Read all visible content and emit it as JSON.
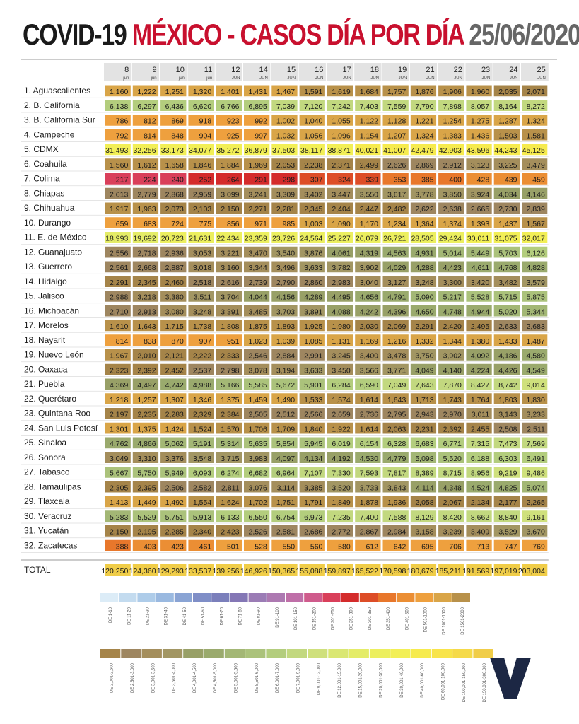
{
  "title": {
    "part1": "COVID-19 ",
    "part2": "MÉXICO - CASOS DÍA POR DÍA ",
    "part3": "25/06/2020"
  },
  "colors": {
    "title_dark": "#1a1a1a",
    "title_red": "#c8102e",
    "title_gray": "#666666"
  },
  "chart_data": {
    "type": "table",
    "columns": [
      {
        "day": "8",
        "month": "jun"
      },
      {
        "day": "9",
        "month": "jun"
      },
      {
        "day": "10",
        "month": "jun"
      },
      {
        "day": "11",
        "month": "jun"
      },
      {
        "day": "12",
        "month": "JUN"
      },
      {
        "day": "14",
        "month": "JUN"
      },
      {
        "day": "15",
        "month": "JUN"
      },
      {
        "day": "16",
        "month": "JUN"
      },
      {
        "day": "17",
        "month": "JUN"
      },
      {
        "day": "18",
        "month": "JUN"
      },
      {
        "day": "19",
        "month": "JUN"
      },
      {
        "day": "21",
        "month": "JUN"
      },
      {
        "day": "22",
        "month": "JUN"
      },
      {
        "day": "23",
        "month": "JUN"
      },
      {
        "day": "24",
        "month": "JUN"
      },
      {
        "day": "25",
        "month": "JUN"
      }
    ],
    "rows": [
      {
        "label": "1. Aguascalientes",
        "values": [
          "1,160",
          "1,222",
          "1,251",
          "1,320",
          "1,401",
          "1,431",
          "1,467",
          "1,591",
          "1,619",
          "1,684",
          "1,757",
          "1,876",
          "1,906",
          "1,960",
          "2,035",
          "2,071"
        ]
      },
      {
        "label": "2. B. California",
        "values": [
          "6,138",
          "6,297",
          "6,436",
          "6,620",
          "6,766",
          "6,895",
          "7,039",
          "7,120",
          "7,242",
          "7,403",
          "7,559",
          "7,790",
          "7,898",
          "8,057",
          "8,164",
          "8,272"
        ]
      },
      {
        "label": "3. B. California Sur",
        "values": [
          "786",
          "812",
          "869",
          "918",
          "923",
          "992",
          "1,002",
          "1,040",
          "1,055",
          "1,122",
          "1,128",
          "1,221",
          "1,254",
          "1,275",
          "1,287",
          "1,324"
        ]
      },
      {
        "label": "4. Campeche",
        "values": [
          "792",
          "814",
          "848",
          "904",
          "925",
          "997",
          "1,032",
          "1,056",
          "1,096",
          "1,154",
          "1,207",
          "1,324",
          "1,383",
          "1,436",
          "1,503",
          "1,581"
        ]
      },
      {
        "label": "5. CDMX",
        "values": [
          "31,493",
          "32,256",
          "33,173",
          "34,077",
          "35,272",
          "36,879",
          "37,503",
          "38,117",
          "38,871",
          "40,021",
          "41,007",
          "42,479",
          "42,903",
          "43,596",
          "44,243",
          "45,125"
        ]
      },
      {
        "label": "6. Coahuila",
        "values": [
          "1,560",
          "1,612",
          "1,658",
          "1,846",
          "1,884",
          "1,969",
          "2,053",
          "2,238",
          "2,371",
          "2,499",
          "2,626",
          "2,869",
          "2,912",
          "3,123",
          "3,225",
          "3,479"
        ]
      },
      {
        "label": "7. Colima",
        "values": [
          "217",
          "224",
          "240",
          "252",
          "264",
          "291",
          "298",
          "307",
          "324",
          "339",
          "353",
          "385",
          "400",
          "428",
          "439",
          "459"
        ]
      },
      {
        "label": "8. Chiapas",
        "values": [
          "2,613",
          "2,779",
          "2,868",
          "2,959",
          "3,099",
          "3,241",
          "3,309",
          "3,402",
          "3,447",
          "3,550",
          "3,617",
          "3,778",
          "3,850",
          "3,924",
          "4,034",
          "4,146"
        ]
      },
      {
        "label": "9. Chihuahua",
        "values": [
          "1,917",
          "1,963",
          "2,073",
          "2,103",
          "2,150",
          "2,271",
          "2,281",
          "2,345",
          "2,404",
          "2,447",
          "2,482",
          "2,622",
          "2,638",
          "2,665",
          "2,730",
          "2,839"
        ]
      },
      {
        "label": "10. Durango",
        "values": [
          "659",
          "683",
          "724",
          "775",
          "856",
          "971",
          "985",
          "1,003",
          "1,090",
          "1,170",
          "1,234",
          "1,364",
          "1,374",
          "1,393",
          "1,437",
          "1,567"
        ]
      },
      {
        "label": "11. E. de México",
        "values": [
          "18,993",
          "19,692",
          "20,723",
          "21,631",
          "22,434",
          "23,359",
          "23,726",
          "24,564",
          "25,227",
          "26,079",
          "26,721",
          "28,505",
          "29,424",
          "30,011",
          "31,075",
          "32,017"
        ]
      },
      {
        "label": "12. Guanajuato",
        "values": [
          "2,556",
          "2,718",
          "2,936",
          "3,053",
          "3,221",
          "3,470",
          "3,540",
          "3,876",
          "4,061",
          "4,319",
          "4,563",
          "4,931",
          "5,014",
          "5,449",
          "5,703",
          "6,126"
        ]
      },
      {
        "label": "13. Guerrero",
        "values": [
          "2,561",
          "2,668",
          "2,887",
          "3,018",
          "3,160",
          "3,344",
          "3,496",
          "3,633",
          "3,782",
          "3,902",
          "4,029",
          "4,288",
          "4,423",
          "4,611",
          "4,768",
          "4,828"
        ]
      },
      {
        "label": "14. Hidalgo",
        "values": [
          "2,291",
          "2,345",
          "2,460",
          "2,518",
          "2,616",
          "2,739",
          "2,790",
          "2,860",
          "2,983",
          "3,040",
          "3,127",
          "3,248",
          "3,300",
          "3,420",
          "3,482",
          "3,579"
        ]
      },
      {
        "label": "15. Jalisco",
        "values": [
          "2,988",
          "3,218",
          "3,380",
          "3,511",
          "3,704",
          "4,044",
          "4,156",
          "4,289",
          "4,495",
          "4,656",
          "4,791",
          "5,090",
          "5,217",
          "5,528",
          "5,715",
          "5,875"
        ]
      },
      {
        "label": "16. Michoacán",
        "values": [
          "2,710",
          "2,913",
          "3,080",
          "3,248",
          "3,391",
          "3,485",
          "3,703",
          "3,891",
          "4,088",
          "4,242",
          "4,396",
          "4,650",
          "4,748",
          "4,944",
          "5,020",
          "5,344"
        ]
      },
      {
        "label": "17. Morelos",
        "values": [
          "1,610",
          "1,643",
          "1,715",
          "1,738",
          "1,808",
          "1,875",
          "1,893",
          "1,925",
          "1,980",
          "2,030",
          "2,069",
          "2,291",
          "2,420",
          "2,495",
          "2,633",
          "2,683"
        ]
      },
      {
        "label": "18. Nayarit",
        "values": [
          "814",
          "838",
          "870",
          "907",
          "951",
          "1,023",
          "1,039",
          "1,085",
          "1,131",
          "1,169",
          "1,216",
          "1,332",
          "1,344",
          "1,380",
          "1,433",
          "1,487"
        ]
      },
      {
        "label": "19. Nuevo León",
        "values": [
          "1,967",
          "2,010",
          "2,121",
          "2,222",
          "2,333",
          "2,546",
          "2,884",
          "2,991",
          "3,245",
          "3,400",
          "3,478",
          "3,750",
          "3,902",
          "4,092",
          "4,186",
          "4,580"
        ]
      },
      {
        "label": "20. Oaxaca",
        "values": [
          "2,323",
          "2,392",
          "2,452",
          "2,537",
          "2,798",
          "3,078",
          "3,194",
          "3,633",
          "3,450",
          "3,566",
          "3,771",
          "4,049",
          "4,140",
          "4,224",
          "4,426",
          "4,549"
        ]
      },
      {
        "label": "21. Puebla",
        "values": [
          "4,369",
          "4,497",
          "4,742",
          "4,988",
          "5,166",
          "5,585",
          "5,672",
          "5,901",
          "6,284",
          "6,590",
          "7,049",
          "7,643",
          "7,870",
          "8,427",
          "8,742",
          "9,014"
        ]
      },
      {
        "label": "22. Querétaro",
        "values": [
          "1,218",
          "1,257",
          "1,307",
          "1,346",
          "1,375",
          "1,459",
          "1,490",
          "1,533",
          "1,574",
          "1,614",
          "1,643",
          "1,713",
          "1,743",
          "1,764",
          "1,803",
          "1,830"
        ]
      },
      {
        "label": "23. Quintana Roo",
        "values": [
          "2,197",
          "2,235",
          "2,283",
          "2,329",
          "2,384",
          "2,505",
          "2,512",
          "2,566",
          "2,659",
          "2,736",
          "2,795",
          "2,943",
          "2,970",
          "3,011",
          "3,143",
          "3,233"
        ]
      },
      {
        "label": "24. San Luis Potosí",
        "values": [
          "1,301",
          "1,375",
          "1,424",
          "1,524",
          "1,570",
          "1,706",
          "1,709",
          "1,840",
          "1,922",
          "1,614",
          "2,063",
          "2,231",
          "2,392",
          "2,455",
          "2,508",
          "2,511"
        ]
      },
      {
        "label": "25. Sinaloa",
        "values": [
          "4,762",
          "4,866",
          "5,062",
          "5,191",
          "5,314",
          "5,635",
          "5,854",
          "5,945",
          "6,019",
          "6,154",
          "6,328",
          "6,683",
          "6,771",
          "7,315",
          "7,473",
          "7,569"
        ]
      },
      {
        "label": "26. Sonora",
        "values": [
          "3,049",
          "3,310",
          "3,376",
          "3,548",
          "3,715",
          "3,983",
          "4,097",
          "4,134",
          "4,192",
          "4,530",
          "4,779",
          "5,098",
          "5,520",
          "6,188",
          "6,303",
          "6,491"
        ]
      },
      {
        "label": "27. Tabasco",
        "values": [
          "5,667",
          "5,750",
          "5,949",
          "6,093",
          "6,274",
          "6,682",
          "6,964",
          "7,107",
          "7,330",
          "7,593",
          "7,817",
          "8,389",
          "8,715",
          "8,956",
          "9,219",
          "9,486"
        ]
      },
      {
        "label": "28. Tamaulipas",
        "values": [
          "2,305",
          "2,395",
          "2,506",
          "2,582",
          "2,811",
          "3,076",
          "3,114",
          "3,385",
          "3,520",
          "3,733",
          "3,843",
          "4,114",
          "4,348",
          "4,524",
          "4,825",
          "5,074"
        ]
      },
      {
        "label": "29. Tlaxcala",
        "values": [
          "1,413",
          "1,449",
          "1,492",
          "1,554",
          "1,624",
          "1,702",
          "1,751",
          "1,791",
          "1,849",
          "1,878",
          "1,936",
          "2,058",
          "2,067",
          "2,134",
          "2,177",
          "2,265"
        ]
      },
      {
        "label": "30. Veracruz",
        "values": [
          "5,283",
          "5,529",
          "5,751",
          "5,913",
          "6,133",
          "6,550",
          "6,754",
          "6,973",
          "7,235",
          "7,400",
          "7,588",
          "8,129",
          "8,420",
          "8,662",
          "8,840",
          "9,161"
        ]
      },
      {
        "label": "31. Yucatán",
        "values": [
          "2,150",
          "2,195",
          "2,285",
          "2,340",
          "2,423",
          "2,526",
          "2,581",
          "2,686",
          "2,772",
          "2,867",
          "2,984",
          "3,158",
          "3,239",
          "3,409",
          "3,529",
          "3,670"
        ]
      },
      {
        "label": "32. Zacatecas",
        "values": [
          "388",
          "403",
          "423",
          "461",
          "501",
          "528",
          "550",
          "560",
          "580",
          "612",
          "642",
          "695",
          "706",
          "713",
          "747",
          "769"
        ]
      }
    ],
    "total": {
      "label": "TOTAL",
      "values": [
        "120,250",
        "124,360",
        "129,293",
        "133,537",
        "139,256",
        "146,926",
        "150,365",
        "155,088",
        "159,897",
        "165,522",
        "170,598",
        "180,679",
        "185,211",
        "191,569",
        "197,019",
        "203,004"
      ]
    },
    "legend_row1": [
      {
        "label": "DE 1-10",
        "color": "#dcecf7"
      },
      {
        "label": "DE 11-20",
        "color": "#c3dbef"
      },
      {
        "label": "DE 21-30",
        "color": "#aecce9"
      },
      {
        "label": "DE 31-40",
        "color": "#9ab9e0"
      },
      {
        "label": "DE 41-50",
        "color": "#8aa4d4"
      },
      {
        "label": "DE 51-60",
        "color": "#7f8ec7"
      },
      {
        "label": "DE 61-70",
        "color": "#7b7fbb"
      },
      {
        "label": "DE 71-80",
        "color": "#8477b5"
      },
      {
        "label": "DE 81-90",
        "color": "#9b7cb5"
      },
      {
        "label": "DE 91-100",
        "color": "#ad79b1"
      },
      {
        "label": "DE 101-150",
        "color": "#bf6fa8"
      },
      {
        "label": "DE 151-200",
        "color": "#cf5b8c"
      },
      {
        "label": "DE 201-250",
        "color": "#d93f5a"
      },
      {
        "label": "DE 251-300",
        "color": "#d42b2b"
      },
      {
        "label": "DE 301-350",
        "color": "#dd4d27"
      },
      {
        "label": "DE 351-400",
        "color": "#e8772b"
      },
      {
        "label": "DE 401-500",
        "color": "#eb8e34"
      },
      {
        "label": "DE 501-1000",
        "color": "#eea03e"
      },
      {
        "label": "DE 1001-1500",
        "color": "#d9a548"
      },
      {
        "label": "DE 1501-2000",
        "color": "#b8914a"
      }
    ],
    "legend_row2": [
      {
        "label": "DE 2,001-2,500",
        "color": "#a58449"
      },
      {
        "label": "DE 2,501-3,000",
        "color": "#9e8660"
      },
      {
        "label": "DE 3,001-3,500",
        "color": "#a48e5c"
      },
      {
        "label": "DE 3,501-4,000",
        "color": "#a29663"
      },
      {
        "label": "DE 4,001-4,500",
        "color": "#98a067"
      },
      {
        "label": "DE 4,501-5,000",
        "color": "#9aaa6d"
      },
      {
        "label": "DE 5,001-5,500",
        "color": "#a3b775"
      },
      {
        "label": "DE 5,501-6,000",
        "color": "#abc27b"
      },
      {
        "label": "DE 6,001-7,000",
        "color": "#b3cd7d"
      },
      {
        "label": "DE 7,001-9,000",
        "color": "#c2d87f"
      },
      {
        "label": "DE 9,001-12,000",
        "color": "#cfe07c"
      },
      {
        "label": "DE 12,001-15,000",
        "color": "#dae773"
      },
      {
        "label": "DE 15,001-20,000",
        "color": "#e4ec68"
      },
      {
        "label": "DE 20,001-30,000",
        "color": "#ecef5f"
      },
      {
        "label": "DE 30,001-40,000",
        "color": "#f2ef56"
      },
      {
        "label": "DE 40,001-60,000",
        "color": "#f6eb4e"
      },
      {
        "label": "DE 60,001-100,000",
        "color": "#f8e44a"
      },
      {
        "label": "DE 100,001-150,000",
        "color": "#f5da49"
      },
      {
        "label": "DE 150,001-300,000",
        "color": "#f0cd48"
      }
    ],
    "logo_letter": "V"
  }
}
